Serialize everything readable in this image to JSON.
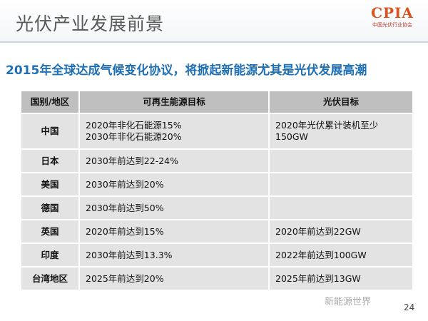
{
  "header": {
    "title": "光伏产业发展前景",
    "logo": {
      "mark": "CPIA",
      "name": "中国光伏行业协会"
    }
  },
  "subtitle": "2015年全球达成气候变化协议，将掀起新能源尤其是光伏发展高潮",
  "table": {
    "columns": [
      "国别/地区",
      "可再生能源目标",
      "光伏目标"
    ],
    "rows": [
      [
        "中国",
        [
          "2020年非化石能源15%",
          "2030年非化石能源20%"
        ],
        "2020年光伏累计装机至少150GW"
      ],
      [
        "日本",
        "2030年前达到22-24%",
        null
      ],
      [
        "美国",
        "2030年前达到20%",
        null
      ],
      [
        "德国",
        "2030年前达到50%",
        null
      ],
      [
        "英国",
        "2020年前达到15%",
        "2020年前达到22GW"
      ],
      [
        "印度",
        "2030年前达到13.3%",
        "2022年前达到100GW"
      ],
      [
        "台湾地区",
        "2025年前达到20%",
        "2025年前达到13GW"
      ]
    ]
  },
  "footer": {
    "watermark": "新能源世界",
    "page": "24"
  }
}
